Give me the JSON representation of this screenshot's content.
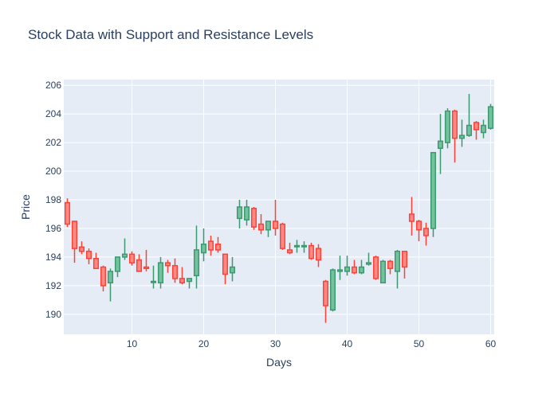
{
  "chart_data": {
    "type": "candlestick",
    "title": "Stock Data with Support and Resistance Levels",
    "xlabel": "Days",
    "ylabel": "Price",
    "xlim": [
      0.5,
      60.5
    ],
    "ylim": [
      188.6,
      206.4
    ],
    "x_ticks": [
      10,
      20,
      30,
      40,
      50,
      60
    ],
    "y_ticks": [
      190,
      192,
      194,
      196,
      198,
      200,
      202,
      204,
      206
    ],
    "grid": true,
    "legend": false,
    "colors": {
      "increasing": "#3d9970",
      "decreasing": "#ff4136",
      "plot_bg": "#e5ecf6",
      "grid": "#ffffff",
      "text": "#2a3f5f"
    },
    "series": [
      {
        "days": [
          1,
          2,
          3,
          4,
          5,
          6,
          7,
          8,
          9,
          10,
          11,
          12,
          13,
          14,
          15,
          16,
          17,
          18,
          19,
          20,
          21,
          22,
          23,
          24,
          25,
          26,
          27,
          28,
          29,
          30,
          31,
          32,
          33,
          34,
          35,
          36,
          37,
          38,
          39,
          40,
          41,
          42,
          43,
          44,
          45,
          46,
          47,
          48,
          49,
          50,
          51,
          52,
          53,
          54,
          55,
          56,
          57,
          58,
          59,
          60
        ],
        "open": [
          197.8,
          196.5,
          194.7,
          194.4,
          193.9,
          193.3,
          192.2,
          193.0,
          194.0,
          194.2,
          193.8,
          193.3,
          192.3,
          192.2,
          193.6,
          193.4,
          192.5,
          192.3,
          192.7,
          194.3,
          195.1,
          194.9,
          194.2,
          192.9,
          196.7,
          196.6,
          197.4,
          196.3,
          195.9,
          196.5,
          196.3,
          194.5,
          194.8,
          194.8,
          194.8,
          194.6,
          192.3,
          190.3,
          193.0,
          193.0,
          193.3,
          192.9,
          193.5,
          194.0,
          192.2,
          193.7,
          193.0,
          194.4,
          197.0,
          196.5,
          196.0,
          196.0,
          201.6,
          202.0,
          204.2,
          202.3,
          202.5,
          203.4,
          202.7,
          203.0
        ],
        "high": [
          198.1,
          196.5,
          195.1,
          194.6,
          194.3,
          193.4,
          193.2,
          193.9,
          195.3,
          194.4,
          194.2,
          194.5,
          193.4,
          194.0,
          193.8,
          193.9,
          193.3,
          192.5,
          196.2,
          196.0,
          195.5,
          195.4,
          194.2,
          194.0,
          198.0,
          198.0,
          197.5,
          197.0,
          196.5,
          198.0,
          196.4,
          195.0,
          195.2,
          195.1,
          195.0,
          194.9,
          192.4,
          193.2,
          194.1,
          194.1,
          193.8,
          193.8,
          194.3,
          194.1,
          193.8,
          193.8,
          194.5,
          194.4,
          198.2,
          196.6,
          196.4,
          201.3,
          204.0,
          204.4,
          204.3,
          203.6,
          205.4,
          203.5,
          203.6,
          204.7
        ],
        "low": [
          196.1,
          193.6,
          194.2,
          193.5,
          193.2,
          191.6,
          190.9,
          192.6,
          193.8,
          193.4,
          193.0,
          193.0,
          191.8,
          191.8,
          192.9,
          192.2,
          192.1,
          191.8,
          191.8,
          193.7,
          194.1,
          194.3,
          192.1,
          192.3,
          196.0,
          196.2,
          195.9,
          195.6,
          195.4,
          195.5,
          194.5,
          194.2,
          194.3,
          194.3,
          193.8,
          193.3,
          189.4,
          190.2,
          192.4,
          192.7,
          192.8,
          192.8,
          193.4,
          192.4,
          192.2,
          192.8,
          191.8,
          192.5,
          195.5,
          195.1,
          194.8,
          195.4,
          199.8,
          201.6,
          200.6,
          201.7,
          202.4,
          202.2,
          202.3,
          202.9
        ],
        "close": [
          196.3,
          194.6,
          194.4,
          193.9,
          193.2,
          192.0,
          193.0,
          194.0,
          194.2,
          193.6,
          193.0,
          193.2,
          192.3,
          193.6,
          193.4,
          192.5,
          192.2,
          192.5,
          194.5,
          194.9,
          194.5,
          194.5,
          192.8,
          193.3,
          197.5,
          197.5,
          196.1,
          195.9,
          196.5,
          196.0,
          194.6,
          194.3,
          194.8,
          194.8,
          193.9,
          193.8,
          190.6,
          193.1,
          193.1,
          193.3,
          192.9,
          193.3,
          193.6,
          192.5,
          193.7,
          193.2,
          194.4,
          193.3,
          196.5,
          195.9,
          195.5,
          201.3,
          202.1,
          204.2,
          202.3,
          202.5,
          203.2,
          202.9,
          203.2,
          204.5
        ]
      }
    ]
  }
}
